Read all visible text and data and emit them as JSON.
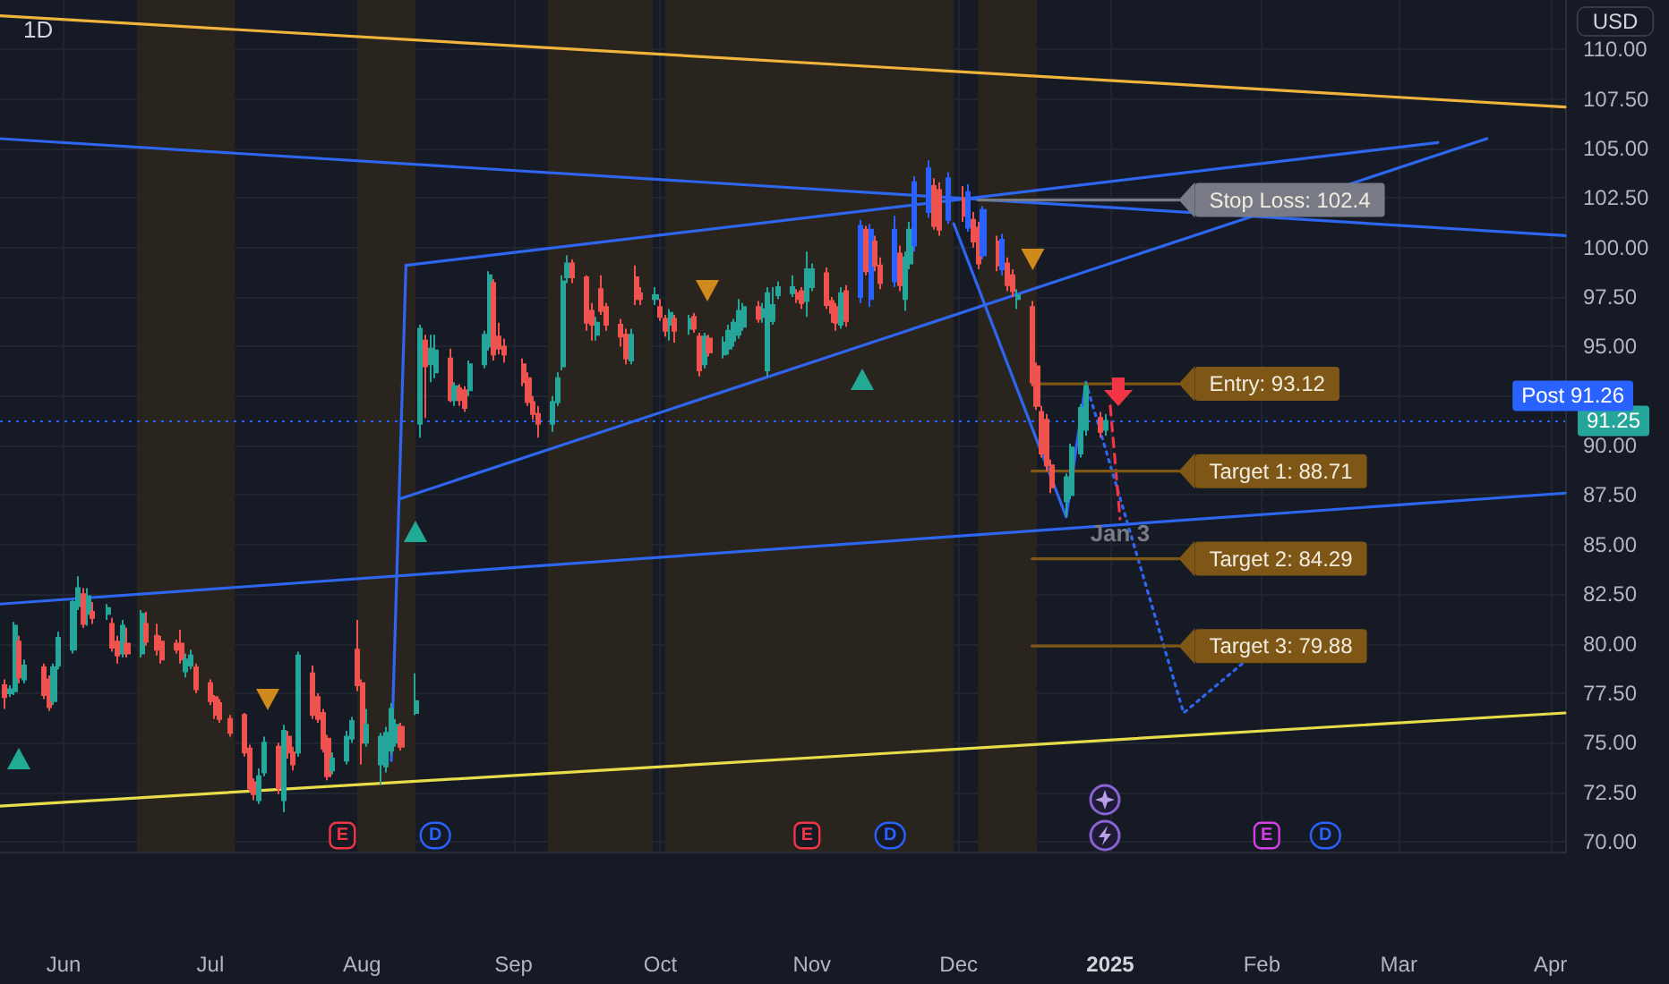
{
  "chart_data": {
    "type": "candlestick",
    "title": "1D",
    "ylabel": "USD",
    "x": [
      "2024-05-20",
      "2024-05-21",
      "2024-05-22",
      "2024-05-23",
      "2024-05-24",
      "2024-05-28",
      "2024-05-29",
      "2024-05-30",
      "2024-05-31",
      "2024-06-03",
      "2024-06-04",
      "2024-06-05",
      "2024-06-06",
      "2024-06-07",
      "2024-06-10",
      "2024-06-11",
      "2024-06-12",
      "2024-06-13",
      "2024-06-14",
      "2024-06-17",
      "2024-06-18",
      "2024-06-20",
      "2024-06-21",
      "2024-06-24",
      "2024-06-25",
      "2024-06-26",
      "2024-06-27",
      "2024-06-28",
      "2024-07-01",
      "2024-07-02",
      "2024-07-03",
      "2024-07-05",
      "2024-07-08",
      "2024-07-09",
      "2024-07-10",
      "2024-07-11",
      "2024-07-12",
      "2024-07-15",
      "2024-07-16",
      "2024-07-17",
      "2024-07-18",
      "2024-07-19",
      "2024-07-22",
      "2024-07-23",
      "2024-07-24",
      "2024-07-25",
      "2024-07-26",
      "2024-07-29",
      "2024-07-30",
      "2024-07-31",
      "2024-08-01",
      "2024-08-02",
      "2024-08-05",
      "2024-08-06",
      "2024-08-07",
      "2024-08-08",
      "2024-08-09",
      "2024-08-12",
      "2024-08-13",
      "2024-08-14",
      "2024-08-15",
      "2024-08-16",
      "2024-08-19",
      "2024-08-20",
      "2024-08-21",
      "2024-08-22",
      "2024-08-23",
      "2024-08-26",
      "2024-08-27",
      "2024-08-28",
      "2024-08-29",
      "2024-08-30",
      "2024-09-03",
      "2024-09-04",
      "2024-09-05",
      "2024-09-06",
      "2024-09-09",
      "2024-09-10",
      "2024-09-11",
      "2024-09-12",
      "2024-09-13",
      "2024-09-16",
      "2024-09-17",
      "2024-09-18",
      "2024-09-19",
      "2024-09-20",
      "2024-09-23",
      "2024-09-24",
      "2024-09-25",
      "2024-09-26",
      "2024-09-27",
      "2024-09-30",
      "2024-10-01",
      "2024-10-02",
      "2024-10-03",
      "2024-10-04",
      "2024-10-07",
      "2024-10-08",
      "2024-10-09",
      "2024-10-10",
      "2024-10-11",
      "2024-10-14",
      "2024-10-15",
      "2024-10-16",
      "2024-10-17",
      "2024-10-18",
      "2024-10-21",
      "2024-10-22",
      "2024-10-23",
      "2024-10-24",
      "2024-10-25",
      "2024-10-28",
      "2024-10-29",
      "2024-10-30",
      "2024-10-31",
      "2024-11-01",
      "2024-11-04",
      "2024-11-05",
      "2024-11-06",
      "2024-11-07",
      "2024-11-08",
      "2024-11-11",
      "2024-11-12",
      "2024-11-13",
      "2024-11-14",
      "2024-11-15",
      "2024-11-18",
      "2024-11-19",
      "2024-11-20",
      "2024-11-21",
      "2024-11-22",
      "2024-11-25",
      "2024-11-26",
      "2024-11-27",
      "2024-11-29",
      "2024-12-02",
      "2024-12-03",
      "2024-12-04",
      "2024-12-05",
      "2024-12-06",
      "2024-12-09",
      "2024-12-10",
      "2024-12-11",
      "2024-12-12",
      "2024-12-13",
      "2024-12-16",
      "2024-12-17",
      "2024-12-18",
      "2024-12-19",
      "2024-12-20",
      "2024-12-23",
      "2024-12-24",
      "2024-12-26",
      "2024-12-27",
      "2024-12-30",
      "2024-12-31"
    ],
    "ohlc": [
      [
        77.9,
        78.2,
        76.7,
        77.3
      ],
      [
        77.5,
        77.9,
        77.3,
        77.7
      ],
      [
        77.6,
        81.1,
        77.4,
        80.9
      ],
      [
        80.1,
        80.4,
        78.0,
        78.3
      ],
      [
        78.2,
        79.2,
        78.0,
        78.9
      ],
      [
        78.8,
        79.0,
        77.2,
        77.4
      ],
      [
        78.2,
        78.4,
        76.6,
        76.8
      ],
      [
        77.1,
        79.0,
        76.9,
        78.8
      ],
      [
        78.9,
        80.6,
        78.7,
        80.3
      ],
      [
        79.7,
        82.2,
        79.5,
        82.1
      ],
      [
        81.9,
        83.4,
        81.7,
        82.8
      ],
      [
        82.5,
        82.8,
        80.8,
        81.0
      ],
      [
        81.5,
        82.8,
        80.9,
        82.4
      ],
      [
        81.6,
        82.1,
        81.0,
        81.3
      ],
      [
        81.5,
        82.0,
        81.2,
        81.8
      ],
      [
        81.0,
        81.3,
        79.6,
        79.8
      ],
      [
        80.1,
        80.4,
        79.0,
        79.4
      ],
      [
        79.5,
        81.2,
        79.3,
        80.9
      ],
      [
        80.0,
        80.8,
        79.3,
        79.5
      ],
      [
        79.5,
        81.7,
        79.3,
        81.5
      ],
      [
        81.0,
        81.6,
        79.9,
        80.1
      ],
      [
        80.4,
        81.0,
        79.4,
        79.7
      ],
      [
        80.1,
        80.4,
        79.0,
        79.2
      ],
      [
        80.0,
        80.2,
        79.5,
        79.7
      ],
      [
        80.0,
        80.7,
        79.0,
        79.2
      ],
      [
        78.6,
        79.5,
        78.3,
        79.2
      ],
      [
        78.9,
        79.7,
        78.7,
        79.4
      ],
      [
        78.8,
        79.0,
        77.5,
        77.7
      ],
      [
        78.0,
        78.2,
        76.9,
        77.1
      ],
      [
        77.3,
        77.4,
        76.2,
        76.4
      ],
      [
        77.0,
        77.2,
        76.0,
        76.2
      ],
      [
        76.2,
        76.4,
        75.3,
        75.5
      ],
      [
        76.4,
        76.5,
        74.3,
        74.5
      ],
      [
        74.7,
        74.9,
        72.5,
        72.7
      ],
      [
        73.0,
        73.2,
        72.1,
        72.4
      ],
      [
        72.1,
        73.7,
        71.9,
        73.3
      ],
      [
        73.5,
        75.3,
        73.3,
        75.0
      ],
      [
        74.8,
        75.0,
        72.4,
        72.7
      ],
      [
        72.1,
        75.9,
        71.5,
        75.6
      ],
      [
        75.3,
        75.6,
        74.2,
        74.5
      ],
      [
        74.5,
        74.8,
        73.6,
        73.9
      ],
      [
        74.5,
        79.6,
        74.3,
        79.4
      ],
      [
        78.5,
        78.9,
        76.2,
        76.4
      ],
      [
        77.3,
        77.5,
        76.0,
        76.2
      ],
      [
        76.5,
        76.7,
        74.5,
        74.7
      ],
      [
        75.2,
        75.4,
        73.1,
        73.3
      ],
      [
        73.6,
        74.5,
        73.4,
        74.2
      ],
      [
        74.1,
        75.6,
        73.9,
        75.3
      ],
      [
        75.2,
        76.3,
        75.0,
        76.1
      ],
      [
        79.7,
        81.2,
        77.6,
        77.9
      ],
      [
        78.0,
        78.2,
        73.9,
        75.0
      ],
      [
        75.0,
        76.7,
        74.8,
        75.9
      ],
      [
        73.9,
        75.5,
        72.9,
        75.3
      ],
      [
        73.8,
        75.8,
        73.5,
        75.5
      ],
      [
        74.6,
        77.0,
        74.4,
        76.7
      ],
      [
        75.0,
        76.2,
        74.8,
        75.9
      ],
      [
        75.8,
        76.0,
        74.6,
        74.8
      ],
      [
        76.5,
        78.5,
        76.4,
        77.1
      ],
      [
        91.1,
        96.1,
        90.4,
        95.9
      ],
      [
        95.3,
        95.6,
        91.4,
        94.0
      ],
      [
        94.1,
        95.6,
        93.2,
        94.9
      ],
      [
        93.7,
        95.6,
        93.4,
        94.8
      ],
      [
        94.4,
        94.9,
        92.2,
        92.3
      ],
      [
        92.3,
        93.2,
        92.0,
        93.0
      ],
      [
        92.9,
        93.1,
        92.0,
        92.3
      ],
      [
        92.8,
        93.0,
        91.7,
        91.9
      ],
      [
        92.8,
        94.3,
        92.5,
        94.1
      ],
      [
        94.1,
        95.8,
        93.9,
        95.6
      ],
      [
        95.0,
        98.8,
        94.8,
        98.6
      ],
      [
        98.2,
        98.4,
        94.3,
        94.6
      ],
      [
        95.5,
        96.2,
        94.6,
        94.9
      ],
      [
        95.0,
        95.4,
        94.2,
        94.6
      ],
      [
        94.1,
        94.4,
        93.0,
        93.2
      ],
      [
        93.4,
        93.7,
        92.0,
        92.2
      ],
      [
        92.2,
        92.5,
        91.3,
        91.6
      ],
      [
        91.6,
        92.0,
        90.4,
        91.1
      ],
      [
        91.1,
        92.5,
        90.7,
        92.2
      ],
      [
        92.2,
        93.7,
        92.0,
        93.4
      ],
      [
        94.0,
        98.6,
        93.8,
        98.3
      ],
      [
        98.5,
        99.6,
        98.2,
        99.2
      ],
      [
        99.2,
        99.4,
        98.2,
        98.5
      ],
      [
        98.5,
        98.6,
        95.8,
        96.2
      ],
      [
        96.8,
        97.2,
        95.3,
        96.1
      ],
      [
        95.6,
        96.5,
        95.3,
        96.2
      ],
      [
        97.9,
        98.6,
        96.6,
        96.8
      ],
      [
        97.0,
        97.2,
        95.8,
        96.1
      ],
      [
        96.1,
        96.4,
        95.0,
        95.5
      ],
      [
        95.6,
        95.9,
        94.1,
        94.4
      ],
      [
        94.3,
        95.9,
        94.1,
        95.6
      ],
      [
        98.5,
        99.1,
        97.1,
        97.4
      ],
      [
        97.7,
        98.0,
        97.1,
        97.4
      ],
      [
        97.4,
        98.0,
        97.1,
        97.6
      ],
      [
        97.0,
        97.4,
        96.3,
        96.5
      ],
      [
        96.4,
        96.6,
        95.5,
        95.8
      ],
      [
        96.1,
        96.9,
        95.3,
        96.7
      ],
      [
        96.4,
        96.6,
        95.2,
        95.8
      ],
      [
        95.9,
        96.6,
        95.6,
        96.4
      ],
      [
        96.5,
        96.7,
        95.7,
        95.9
      ],
      [
        95.5,
        95.7,
        93.5,
        93.8
      ],
      [
        94.1,
        95.7,
        93.9,
        95.5
      ],
      [
        95.4,
        95.6,
        94.5,
        94.7
      ],
      [
        94.6,
        95.5,
        94.4,
        95.2
      ],
      [
        94.9,
        96.1,
        94.6,
        95.8
      ],
      [
        95.3,
        96.4,
        95.0,
        96.2
      ],
      [
        95.6,
        97.4,
        95.4,
        96.8
      ],
      [
        96.0,
        97.2,
        95.8,
        97.0
      ],
      [
        97.0,
        97.3,
        96.2,
        96.4
      ],
      [
        96.5,
        97.2,
        96.2,
        96.9
      ],
      [
        93.8,
        98.0,
        93.5,
        97.7
      ],
      [
        96.3,
        98.0,
        96.1,
        97.1
      ],
      [
        97.6,
        98.3,
        97.4,
        98.0
      ],
      [
        97.7,
        98.6,
        97.5,
        98.0
      ],
      [
        97.7,
        97.9,
        97.2,
        97.4
      ],
      [
        97.8,
        98.0,
        96.9,
        97.2
      ],
      [
        97.3,
        99.8,
        96.5,
        98.9
      ],
      [
        98.0,
        99.2,
        97.8,
        98.9
      ],
      [
        98.7,
        99.0,
        96.9,
        97.1
      ],
      [
        97.3,
        97.5,
        96.2,
        96.7
      ],
      [
        97.0,
        97.2,
        95.8,
        96.2
      ],
      [
        96.1,
        98.0,
        95.9,
        97.7
      ],
      [
        97.8,
        98.1,
        96.0,
        96.3
      ],
      [
        97.5,
        101.4,
        97.2,
        101.1
      ],
      [
        100.9,
        101.1,
        98.6,
        98.8
      ],
      [
        97.4,
        101.2,
        97.0,
        100.9
      ],
      [
        100.3,
        100.6,
        98.8,
        99.1
      ],
      [
        99.1,
        99.5,
        97.9,
        98.2
      ],
      [
        98.3,
        101.6,
        98.0,
        100.9
      ],
      [
        99.7,
        100.1,
        97.8,
        98.1
      ],
      [
        97.4,
        99.8,
        96.8,
        99.5
      ],
      [
        99.2,
        101.3,
        98.9,
        100.9
      ],
      [
        100.1,
        103.6,
        99.8,
        103.3
      ],
      [
        101.8,
        104.4,
        101.5,
        104.0
      ],
      [
        103.1,
        103.5,
        100.9,
        101.1
      ],
      [
        102.9,
        103.3,
        100.6,
        100.9
      ],
      [
        101.4,
        103.8,
        101.2,
        103.5
      ],
      [
        102.5,
        103.1,
        101.3,
        101.6
      ],
      [
        101.0,
        103.2,
        100.8,
        102.8
      ],
      [
        101.4,
        101.8,
        100.0,
        100.3
      ],
      [
        101.0,
        101.3,
        98.9,
        99.2
      ],
      [
        99.6,
        102.1,
        99.4,
        101.9
      ],
      [
        100.3,
        100.6,
        98.8,
        99.1
      ],
      [
        98.9,
        100.7,
        98.6,
        100.4
      ],
      [
        99.2,
        99.5,
        97.8,
        98.1
      ],
      [
        98.6,
        98.9,
        97.5,
        97.8
      ],
      [
        97.4,
        97.9,
        96.9,
        97.6
      ],
      [
        97.0,
        97.3,
        93.0,
        93.2
      ],
      [
        94.0,
        94.2,
        91.8,
        92.0
      ],
      [
        91.7,
        92.0,
        89.4,
        89.6
      ],
      [
        91.3,
        91.6,
        88.7,
        89.0
      ],
      [
        89.0,
        89.3,
        87.6,
        87.9
      ],
      [
        87.2,
        88.6,
        86.4,
        88.4
      ],
      [
        87.5,
        90.1,
        87.3,
        89.9
      ],
      [
        89.6,
        92.1,
        89.4,
        91.9
      ],
      [
        90.8,
        93.2,
        90.5,
        93.0
      ],
      [
        91.4,
        91.7,
        90.4,
        90.7
      ],
      [
        90.8,
        91.6,
        90.5,
        91.25
      ]
    ],
    "colors": [
      "#ef5350",
      "#26a69a",
      "#26a69a",
      "#ef5350",
      "#26a69a",
      "#ef5350",
      "#ef5350",
      "#26a69a",
      "#26a69a",
      "#26a69a",
      "#26a69a",
      "#ef5350",
      "#26a69a",
      "#ef5350",
      "#26a69a",
      "#ef5350",
      "#ef5350",
      "#26a69a",
      "#ef5350",
      "#26a69a",
      "#ef5350",
      "#ef5350",
      "#ef5350",
      "#ef5350",
      "#ef5350",
      "#26a69a",
      "#26a69a",
      "#ef5350",
      "#ef5350",
      "#ef5350",
      "#ef5350",
      "#ef5350",
      "#ef5350",
      "#ef5350",
      "#ef5350",
      "#26a69a",
      "#26a69a",
      "#ef5350",
      "#26a69a",
      "#ef5350",
      "#ef5350",
      "#26a69a",
      "#ef5350",
      "#ef5350",
      "#ef5350",
      "#ef5350",
      "#26a69a",
      "#26a69a",
      "#26a69a",
      "#ef5350",
      "#ef5350",
      "#26a69a",
      "#26a69a",
      "#26a69a",
      "#26a69a",
      "#26a69a",
      "#ef5350",
      "#26a69a",
      "#26a69a",
      "#ef5350",
      "#26a69a",
      "#26a69a",
      "#ef5350",
      "#26a69a",
      "#ef5350",
      "#ef5350",
      "#26a69a",
      "#26a69a",
      "#26a69a",
      "#ef5350",
      "#ef5350",
      "#ef5350",
      "#ef5350",
      "#ef5350",
      "#ef5350",
      "#ef5350",
      "#26a69a",
      "#26a69a",
      "#26a69a",
      "#26a69a",
      "#ef5350",
      "#ef5350",
      "#ef5350",
      "#26a69a",
      "#ef5350",
      "#ef5350",
      "#ef5350",
      "#ef5350",
      "#26a69a",
      "#ef5350",
      "#ef5350",
      "#26a69a",
      "#ef5350",
      "#ef5350",
      "#26a69a",
      "#ef5350",
      "#26a69a",
      "#ef5350",
      "#ef5350",
      "#26a69a",
      "#ef5350",
      "#26a69a",
      "#26a69a",
      "#26a69a",
      "#26a69a",
      "#26a69a",
      "#ef5350",
      "#26a69a",
      "#26a69a",
      "#26a69a",
      "#26a69a",
      "#26a69a",
      "#ef5350",
      "#ef5350",
      "#26a69a",
      "#26a69a",
      "#ef5350",
      "#ef5350",
      "#ef5350",
      "#26a69a",
      "#ef5350",
      "#2962ff",
      "#ef5350",
      "#2962ff",
      "#ef5350",
      "#ef5350",
      "#2962ff",
      "#ef5350",
      "#26a69a",
      "#26a69a",
      "#2962ff",
      "#2962ff",
      "#ef5350",
      "#ef5350",
      "#2962ff",
      "#ef5350",
      "#2962ff",
      "#ef5350",
      "#ef5350",
      "#2962ff",
      "#ef5350",
      "#2962ff",
      "#ef5350",
      "#ef5350",
      "#26a69a",
      "#ef5350",
      "#ef5350",
      "#ef5350",
      "#ef5350",
      "#ef5350",
      "#26a69a",
      "#26a69a",
      "#26a69a",
      "#26a69a",
      "#ef5350",
      "#26a69a"
    ],
    "series": [
      {
        "type": "line",
        "color": "#f0b43c",
        "x": [
          "2024-05-19",
          "2025-04-04"
        ],
        "values": [
          111.7,
          107.1
        ]
      },
      {
        "type": "line",
        "color": "#e8dc4a",
        "x": [
          "2024-05-19",
          "2025-04-04"
        ],
        "values": [
          71.8,
          76.5
        ]
      },
      {
        "type": "line",
        "color": "#2e66f0",
        "x": [
          "2024-05-19",
          "2025-04-04"
        ],
        "values": [
          105.5,
          100.6
        ]
      },
      {
        "type": "line",
        "color": "#2e66f0",
        "x": [
          "2024-05-19",
          "2025-04-04"
        ],
        "values": [
          82.0,
          87.6
        ]
      },
      {
        "type": "line",
        "color": "#2e66f0",
        "x": [
          "2024-08-07",
          "2024-08-10"
        ],
        "values": [
          74.1,
          99.1
        ]
      },
      {
        "type": "line",
        "color": "#2e66f0",
        "x": [
          "2024-08-10",
          "2025-03-09"
        ],
        "values": [
          99.1,
          105.3
        ]
      },
      {
        "type": "line",
        "color": "#2e66f0",
        "x": [
          "2024-08-08T14:00",
          "2025-03-19"
        ],
        "values": [
          87.3,
          105.5
        ]
      },
      {
        "type": "line",
        "color": "#2e66f0",
        "x": [
          "2024-11-30",
          "2024-12-23",
          "2024-12-27"
        ],
        "values": [
          101.2,
          86.4,
          93.2
        ]
      },
      {
        "type": "line",
        "color": "#2e66f0",
        "line_style": "dotted",
        "x": [
          "2024-12-27",
          "2025-01-16",
          "2025-01-29"
        ],
        "values": [
          93.2,
          76.5,
          79.2
        ]
      },
      {
        "type": "line",
        "color": "#f23645",
        "line_style": "dashed",
        "x": [
          "2025-01-01",
          "2025-01-03"
        ],
        "values": [
          92.0,
          86.3
        ]
      },
      {
        "type": "line",
        "color": "#787b86",
        "x": [
          "2024-12-05",
          "2025-01-15"
        ],
        "values": [
          102.4,
          102.4
        ]
      },
      {
        "type": "line",
        "color": "#7e5716",
        "x": [
          "2024-12-16",
          "2025-01-15"
        ],
        "values": [
          93.12,
          93.12
        ]
      },
      {
        "type": "line",
        "color": "#7e5716",
        "x": [
          "2024-12-16",
          "2025-01-15"
        ],
        "values": [
          88.71,
          88.71
        ]
      },
      {
        "type": "line",
        "color": "#7e5716",
        "x": [
          "2024-12-16",
          "2025-01-15"
        ],
        "values": [
          84.29,
          84.29
        ]
      },
      {
        "type": "line",
        "color": "#7e5716",
        "x": [
          "2024-12-16",
          "2025-01-15"
        ],
        "values": [
          79.88,
          79.88
        ]
      }
    ],
    "annotations": [
      {
        "text": "Stop Loss: 102.4",
        "x": "2025-01-15",
        "y": 102.4
      },
      {
        "text": "Entry: 93.12",
        "x": "2025-01-15",
        "y": 93.12
      },
      {
        "text": "Target 1: 88.71",
        "x": "2025-01-15",
        "y": 88.71
      },
      {
        "text": "Target 2: 84.29",
        "x": "2025-01-15",
        "y": 84.29
      },
      {
        "text": "Target 3: 79.88",
        "x": "2025-01-15",
        "y": 79.88
      },
      {
        "text": "Jan 3",
        "x": "2025-01-03",
        "y": 85.6
      },
      {
        "text": "91.25",
        "x": "2025-04-04",
        "y": 91.25
      },
      {
        "text": "E",
        "x": "2024-07-28"
      },
      {
        "text": "D",
        "x": "2024-08-16"
      },
      {
        "text": "E",
        "x": "2024-10-31"
      },
      {
        "text": "D",
        "x": "2024-11-17"
      },
      {
        "text": "E",
        "x": "2025-02-02"
      },
      {
        "text": "D",
        "x": "2025-02-14"
      }
    ],
    "bands": [
      {
        "axis": "x",
        "from": "2024-06-16",
        "to": "2024-07-06",
        "color": "#2a241f"
      },
      {
        "axis": "x",
        "from": "2024-07-31",
        "to": "2024-08-12",
        "color": "#2a241f"
      },
      {
        "axis": "x",
        "from": "2024-09-08",
        "to": "2024-09-29T12:00",
        "color": "#2a241f"
      },
      {
        "axis": "x",
        "from": "2024-10-02",
        "to": "2024-11-30",
        "color": "#2a241f"
      },
      {
        "axis": "x",
        "from": "2024-12-05",
        "to": "2024-12-17",
        "color": "#2a241f"
      }
    ],
    "ref_lines": [
      {
        "axis": "y",
        "value": 91.26,
        "label": "Post 91.26",
        "color": "#2962ff",
        "line_style": "dotted"
      }
    ],
    "xlim": [
      "2024-05-19",
      "2025-04-04"
    ],
    "xticks": [
      {
        "value": "2024-06-01",
        "label": "Jun"
      },
      {
        "value": "2024-07-01",
        "label": "Jul"
      },
      {
        "value": "2024-08-01",
        "label": "Aug"
      },
      {
        "value": "2024-09-01",
        "label": "Sep"
      },
      {
        "value": "2024-10-01",
        "label": "Oct"
      },
      {
        "value": "2024-11-01",
        "label": "Nov"
      },
      {
        "value": "2024-12-01",
        "label": "Dec"
      },
      {
        "value": "2025-01-01",
        "label": "2025"
      },
      {
        "value": "2025-02-01",
        "label": "Feb"
      },
      {
        "value": "2025-03-01",
        "label": "Mar"
      },
      {
        "value": "2025-04-01",
        "label": "Apr"
      }
    ],
    "ylim": [
      69.5,
      112.5
    ],
    "yticks": [
      {
        "value": 70,
        "label": "70.00"
      },
      {
        "value": 72.5,
        "label": "72.50"
      },
      {
        "value": 75,
        "label": "75.00"
      },
      {
        "value": 77.5,
        "label": "77.50"
      },
      {
        "value": 80,
        "label": "80.00"
      },
      {
        "value": 82.5,
        "label": "82.50"
      },
      {
        "value": 85,
        "label": "85.00"
      },
      {
        "value": 87.5,
        "label": "87.50"
      },
      {
        "value": 90,
        "label": "90.00"
      },
      {
        "value": 92.5,
        "label": null
      },
      {
        "value": 95,
        "label": "95.00"
      },
      {
        "value": 97.5,
        "label": "97.50"
      },
      {
        "value": 100,
        "label": "100.00"
      },
      {
        "value": 102.5,
        "label": "102.50"
      },
      {
        "value": 105,
        "label": "105.00"
      },
      {
        "value": 107.5,
        "label": "107.50"
      },
      {
        "value": 110,
        "label": "110.00"
      }
    ],
    "grid": true
  }
}
